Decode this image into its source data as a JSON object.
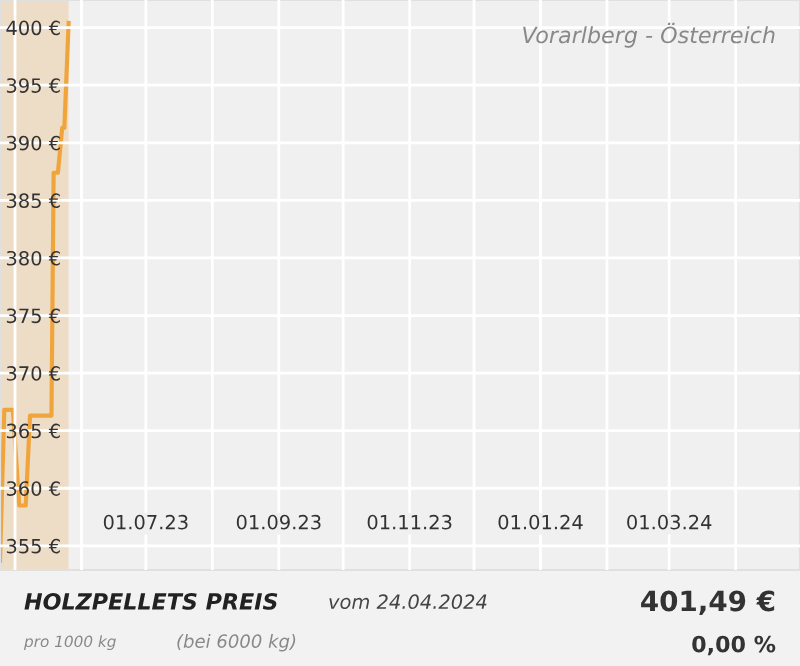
{
  "chart_data": {
    "type": "line",
    "title": "Vorarlberg - Österreich",
    "x": [
      "2023-04-24",
      "2023-04-26",
      "2023-04-30",
      "2023-05-03",
      "2023-05-06",
      "2023-05-08",
      "2023-05-18",
      "2023-05-19",
      "2023-05-21",
      "2023-05-23",
      "2023-05-24",
      "2023-05-26"
    ],
    "series": [
      {
        "color": "#f0a53c",
        "values": [
          353.7,
          366.8,
          366.8,
          358.5,
          358.5,
          366.3,
          366.3,
          387.4,
          387.4,
          391.3,
          391.3,
          400.4
        ]
      }
    ],
    "xlim": [
      "2023-04-24",
      "2024-05-01"
    ],
    "xticks": [
      {
        "value": "2023-05-01",
        "label": null
      },
      {
        "value": "2023-06-01",
        "label": null
      },
      {
        "value": "2023-07-01",
        "label": "01.07.23"
      },
      {
        "value": "2023-08-01",
        "label": null
      },
      {
        "value": "2023-09-01",
        "label": "01.09.23"
      },
      {
        "value": "2023-10-01",
        "label": null
      },
      {
        "value": "2023-11-01",
        "label": "01.11.23"
      },
      {
        "value": "2023-12-01",
        "label": null
      },
      {
        "value": "2024-01-01",
        "label": "01.01.24"
      },
      {
        "value": "2024-02-01",
        "label": null
      },
      {
        "value": "2024-03-01",
        "label": "01.03.24"
      },
      {
        "value": "2024-04-01",
        "label": null
      }
    ],
    "ylim": [
      352.9,
      402.4
    ],
    "yticks": [
      {
        "value": 355,
        "label": "355 €"
      },
      {
        "value": 360,
        "label": "360 €"
      },
      {
        "value": 365,
        "label": "365 €"
      },
      {
        "value": 370,
        "label": "370 €"
      },
      {
        "value": 375,
        "label": "375 €"
      },
      {
        "value": 380,
        "label": "380 €"
      },
      {
        "value": 385,
        "label": "385 €"
      },
      {
        "value": 390,
        "label": "390 €"
      },
      {
        "value": 395,
        "label": "395 €"
      },
      {
        "value": 400,
        "label": "400 €"
      }
    ],
    "bands": [
      {
        "axis": "x",
        "from": "2023-04-24",
        "to": "2023-05-26",
        "color": "#eddcc6"
      }
    ],
    "grid": true,
    "legend": false,
    "marker": "none",
    "line_style": "solid",
    "annotations": [
      "HOLZPELLETS PREIS",
      "vom 24.04.2024",
      "pro 1000 kg",
      "(bei 6000 kg)",
      "401,49 €",
      "0,00 %"
    ]
  }
}
